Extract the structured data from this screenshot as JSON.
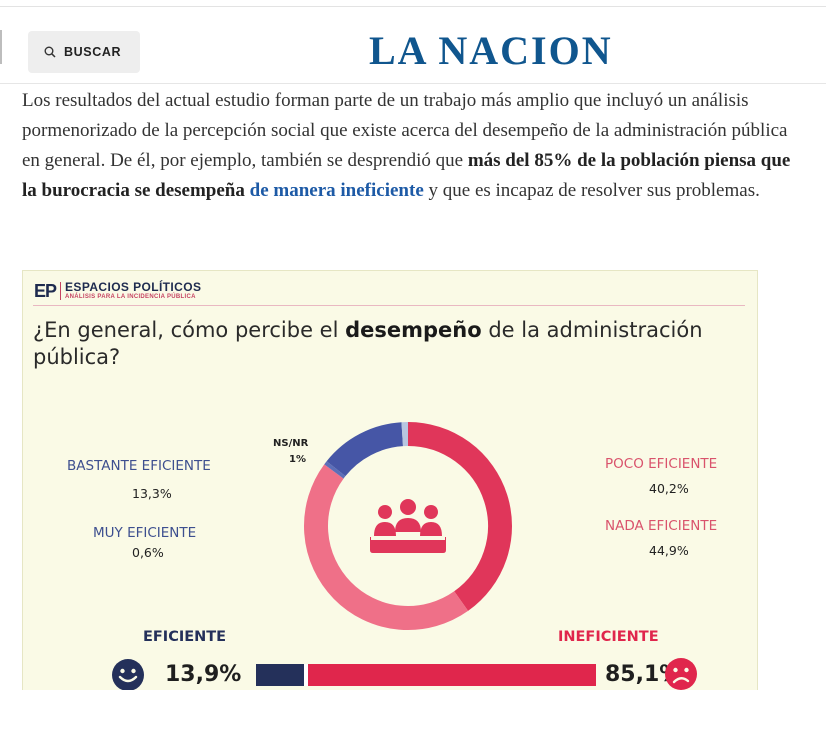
{
  "header": {
    "search_label": "BUSCAR",
    "logo": "LA NACION"
  },
  "article": {
    "text_1": "Los resultados del actual estudio forman parte de un trabajo más amplio que incluyó un análisis pormenorizado de la percepción social que existe acerca del desempeño de la administración pública en general. De él, por ejemplo, también se desprendió que ",
    "bold": "más del 85% de la población piensa que la burocracia se desempeña",
    "bold_space": " ",
    "link": "de manera ineficiente",
    "text_2": " y que es incapaz de resolver sus problemas."
  },
  "infographic": {
    "brand_mark": "EP",
    "brand_name": "ESPACIOS POLÍTICOS",
    "brand_tagline": "ANÁLISIS PARA LA INCIDENCIA PÚBLICA",
    "question_1": "¿En general, cómo percibe el ",
    "question_bold": "desempeño",
    "question_2": " de la administración pública?",
    "labels": {
      "bastante": "BASTANTE EFICIENTE",
      "bastante_val": "13,3%",
      "muy": "MUY EFICIENTE",
      "muy_val": "0,6%",
      "nsnr": "NS/NR",
      "nsnr_val": "1%",
      "poco": "POCO EFICIENTE",
      "poco_val": "40,2%",
      "nada": "NADA EFICIENTE",
      "nada_val": "44,9%"
    },
    "bottom": {
      "eficiente_label": "EFICIENTE",
      "eficiente_val": "13,9%",
      "ineficiente_label": "INEFICIENTE",
      "ineficiente_val": "85,1%"
    }
  },
  "chart_data": {
    "type": "pie",
    "title": "¿En general, cómo percibe el desempeño de la administración pública?",
    "categories": [
      "Poco eficiente",
      "Nada eficiente",
      "Muy eficiente",
      "Bastante eficiente",
      "NS/NR"
    ],
    "values": [
      40.2,
      44.9,
      0.6,
      13.3,
      1
    ],
    "colors": [
      "#e0365a",
      "#ef7088",
      "#5c6eb8",
      "#4656a6",
      "#b8c6e0"
    ],
    "summary": {
      "eficiente": 13.9,
      "ineficiente": 85.1
    },
    "summary_colors": {
      "eficiente": "#24305a",
      "ineficiente": "#e0264c"
    }
  }
}
